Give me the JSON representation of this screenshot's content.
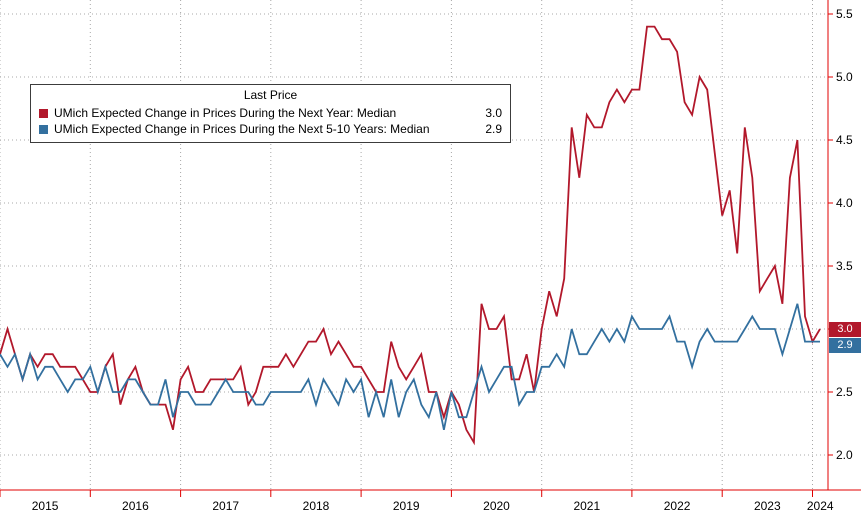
{
  "chart_data": {
    "type": "line",
    "title": "",
    "grid": "dotted",
    "axis_color": "#e00000",
    "x_unit": "month",
    "x_range": "Jan 2015 - Feb 2024",
    "x_tick_labels": [
      "2015",
      "2016",
      "2017",
      "2018",
      "2019",
      "2020",
      "2021",
      "2022",
      "2023",
      "2024"
    ],
    "y_ticks": [
      2.0,
      2.5,
      3.0,
      3.5,
      4.0,
      4.5,
      5.0,
      5.5
    ],
    "ylim": [
      1.72,
      5.61
    ],
    "legend": {
      "title": "Last Price",
      "entries": [
        {
          "label": "UMich Expected Change in Prices During the Next Year: Median",
          "value": "3.0",
          "color": "#b2182b"
        },
        {
          "label": "UMich Expected Change in Prices During the Next 5-10 Years: Median",
          "value": "2.9",
          "color": "#33709f"
        }
      ]
    },
    "series": [
      {
        "id": "next-year",
        "name": "UMich Expected Change in Prices During the Next Year: Median",
        "color": "#b2182b",
        "last_price": "3.0",
        "values": [
          2.8,
          3.0,
          2.8,
          2.6,
          2.8,
          2.7,
          2.8,
          2.8,
          2.7,
          2.7,
          2.7,
          2.6,
          2.5,
          2.5,
          2.7,
          2.8,
          2.4,
          2.6,
          2.7,
          2.5,
          2.4,
          2.4,
          2.4,
          2.2,
          2.6,
          2.7,
          2.5,
          2.5,
          2.6,
          2.6,
          2.6,
          2.6,
          2.7,
          2.4,
          2.5,
          2.7,
          2.7,
          2.7,
          2.8,
          2.7,
          2.8,
          2.9,
          2.9,
          3.0,
          2.8,
          2.9,
          2.8,
          2.7,
          2.7,
          2.6,
          2.5,
          2.5,
          2.9,
          2.7,
          2.6,
          2.7,
          2.8,
          2.5,
          2.5,
          2.3,
          2.5,
          2.4,
          2.2,
          2.1,
          3.2,
          3.0,
          3.0,
          3.1,
          2.6,
          2.6,
          2.8,
          2.5,
          3.0,
          3.3,
          3.1,
          3.4,
          4.6,
          4.2,
          4.7,
          4.6,
          4.6,
          4.8,
          4.9,
          4.8,
          4.9,
          4.9,
          5.4,
          5.4,
          5.3,
          5.3,
          5.2,
          4.8,
          4.7,
          5.0,
          4.9,
          4.4,
          3.9,
          4.1,
          3.6,
          4.6,
          4.2,
          3.3,
          3.4,
          3.5,
          3.2,
          4.2,
          4.5,
          3.1,
          2.9,
          3.0
        ]
      },
      {
        "id": "next-5-10-years",
        "name": "UMich Expected Change in Prices During the Next 5-10 Years: Median",
        "color": "#33709f",
        "last_price": "2.9",
        "values": [
          2.8,
          2.7,
          2.8,
          2.6,
          2.8,
          2.6,
          2.7,
          2.7,
          2.6,
          2.5,
          2.6,
          2.6,
          2.7,
          2.5,
          2.7,
          2.5,
          2.5,
          2.6,
          2.6,
          2.5,
          2.4,
          2.4,
          2.6,
          2.3,
          2.5,
          2.5,
          2.4,
          2.4,
          2.4,
          2.5,
          2.6,
          2.5,
          2.5,
          2.5,
          2.4,
          2.4,
          2.5,
          2.5,
          2.5,
          2.5,
          2.5,
          2.6,
          2.4,
          2.6,
          2.5,
          2.4,
          2.6,
          2.5,
          2.6,
          2.3,
          2.5,
          2.3,
          2.6,
          2.3,
          2.5,
          2.6,
          2.4,
          2.3,
          2.5,
          2.2,
          2.5,
          2.3,
          2.3,
          2.5,
          2.7,
          2.5,
          2.6,
          2.7,
          2.7,
          2.4,
          2.5,
          2.5,
          2.7,
          2.7,
          2.8,
          2.7,
          3.0,
          2.8,
          2.8,
          2.9,
          3.0,
          2.9,
          3.0,
          2.9,
          3.1,
          3.0,
          3.0,
          3.0,
          3.0,
          3.1,
          2.9,
          2.9,
          2.7,
          2.9,
          3.0,
          2.9,
          2.9,
          2.9,
          2.9,
          3.0,
          3.1,
          3.0,
          3.0,
          3.0,
          2.8,
          3.0,
          3.2,
          2.9,
          2.9,
          2.9
        ]
      }
    ]
  }
}
